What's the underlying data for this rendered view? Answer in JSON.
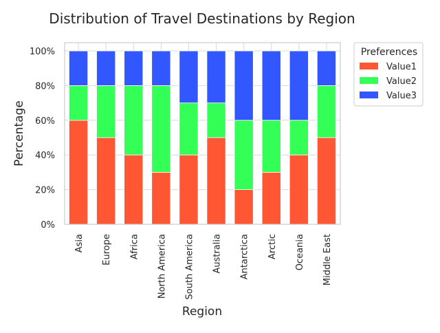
{
  "chart_data": {
    "type": "bar",
    "stacked": true,
    "title": "Distribution of Travel Destinations by Region",
    "xlabel": "Region",
    "ylabel": "Percentage",
    "ylim": [
      0,
      100
    ],
    "yticks": [
      "0%",
      "20%",
      "40%",
      "60%",
      "80%",
      "100%"
    ],
    "categories": [
      "Asia",
      "Europe",
      "Africa",
      "North America",
      "South America",
      "Australia",
      "Antarctica",
      "Arctic",
      "Oceania",
      "Middle East"
    ],
    "series": [
      {
        "name": "Value1",
        "color": "#ff5733",
        "values": [
          60,
          50,
          40,
          30,
          40,
          50,
          20,
          30,
          40,
          50
        ]
      },
      {
        "name": "Value2",
        "color": "#33ff57",
        "values": [
          20,
          30,
          40,
          50,
          30,
          20,
          40,
          30,
          20,
          30
        ]
      },
      {
        "name": "Value3",
        "color": "#3357ff",
        "values": [
          20,
          20,
          20,
          20,
          30,
          30,
          40,
          40,
          40,
          20
        ]
      }
    ],
    "legend": {
      "title": "Preferences",
      "placement": "outside-top-right"
    },
    "grid": true
  }
}
